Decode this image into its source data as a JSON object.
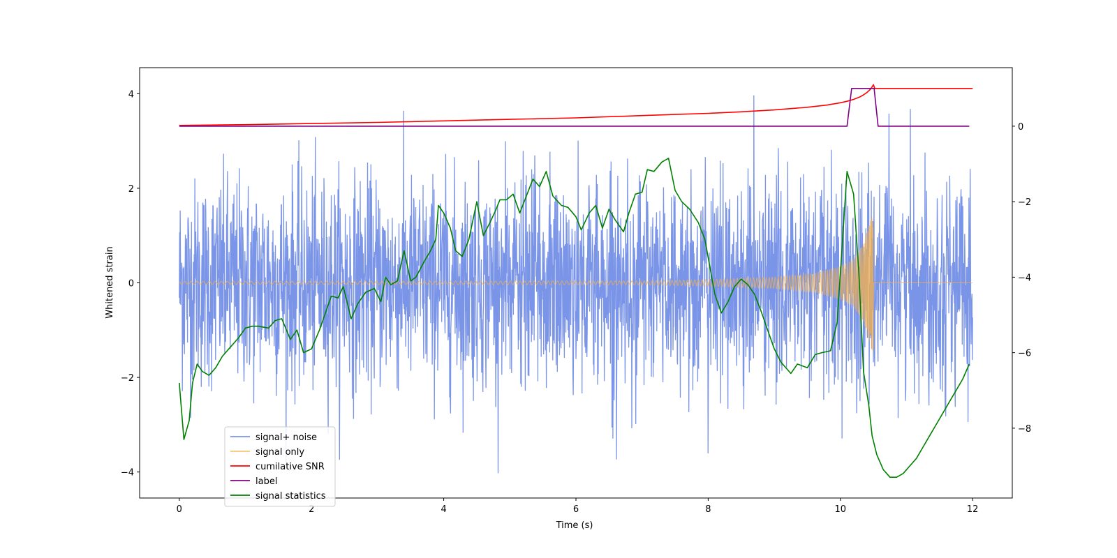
{
  "chart_data": {
    "type": "line",
    "title": "",
    "xlabel": "Time (s)",
    "ylabel": "Whitened strain",
    "xlim": [
      -0.6,
      12.6
    ],
    "ylim": [
      -4.55,
      4.55
    ],
    "y2lim": [
      -9.85,
      1.55
    ],
    "x_ticks": [
      0,
      2,
      4,
      6,
      8,
      10,
      12
    ],
    "y_ticks": [
      -4,
      -2,
      0,
      2,
      4
    ],
    "y2_ticks": [
      -8,
      -6,
      -4,
      -2,
      0
    ],
    "grid": false,
    "legend_position": "lower-left",
    "colors": {
      "noise": "#6b88e6",
      "signal": "#f5b24a",
      "snr": "#ff0000",
      "label": "#800080",
      "stats": "#008000"
    },
    "legend": [
      {
        "label": "signal+ noise",
        "key": "noise"
      },
      {
        "label": "signal only",
        "key": "signal"
      },
      {
        "label": "cumilative SNR",
        "key": "snr"
      },
      {
        "label": "label",
        "key": "label"
      },
      {
        "label": "signal statistics",
        "key": "stats"
      }
    ],
    "series": [
      {
        "name": "signal+ noise",
        "axis": "left",
        "description": "whitened strain, noise dominated, roughly Gaussian with sigma about 1.1 and peaks reaching about ±4.1",
        "x_range": [
          0,
          12
        ],
        "sigma": 1.1,
        "peak_max": 4.1,
        "peak_min": -4.15
      },
      {
        "name": "signal only",
        "axis": "left",
        "description": "chirp oscillating about 0, envelope grows toward merger near t=10.5 s then cuts off",
        "x_range": [
          0,
          12
        ],
        "merger_time": 10.5,
        "envelope_points": [
          [
            0,
            0.03
          ],
          [
            7,
            0.04
          ],
          [
            8,
            0.07
          ],
          [
            9,
            0.12
          ],
          [
            9.6,
            0.2
          ],
          [
            10,
            0.35
          ],
          [
            10.2,
            0.5
          ],
          [
            10.35,
            0.85
          ],
          [
            10.45,
            1.3
          ],
          [
            10.5,
            1.5
          ]
        ]
      },
      {
        "name": "cumilative SNR",
        "axis": "right",
        "x": [
          0,
          1,
          2,
          3,
          4,
          5,
          6,
          7,
          7.5,
          8,
          8.5,
          9,
          9.5,
          9.8,
          10,
          10.1,
          10.2,
          10.3,
          10.35,
          10.4,
          10.45,
          10.48,
          10.5,
          10.52,
          12
        ],
        "values": [
          0.02,
          0.04,
          0.07,
          0.1,
          0.14,
          0.18,
          0.22,
          0.28,
          0.31,
          0.34,
          0.38,
          0.43,
          0.5,
          0.56,
          0.62,
          0.66,
          0.71,
          0.78,
          0.83,
          0.89,
          0.97,
          1.04,
          1.1,
          1.0,
          1.0
        ]
      },
      {
        "name": "label",
        "axis": "right",
        "x": [
          0,
          10.1,
          10.17,
          10.51,
          10.57,
          11.95
        ],
        "values": [
          0,
          0,
          1,
          1,
          0,
          0
        ]
      },
      {
        "name": "signal statistics",
        "axis": "right",
        "x": [
          0,
          0.07,
          0.15,
          0.2,
          0.27,
          0.35,
          0.45,
          0.55,
          0.65,
          0.75,
          0.9,
          1.0,
          1.1,
          1.2,
          1.35,
          1.45,
          1.55,
          1.68,
          1.78,
          1.88,
          2.0,
          2.12,
          2.2,
          2.3,
          2.4,
          2.48,
          2.6,
          2.7,
          2.82,
          2.95,
          3.05,
          3.12,
          3.2,
          3.3,
          3.4,
          3.5,
          3.58,
          3.7,
          3.8,
          3.88,
          3.92,
          4.0,
          4.1,
          4.18,
          4.28,
          4.38,
          4.5,
          4.6,
          4.7,
          4.78,
          4.85,
          4.95,
          5.05,
          5.15,
          5.25,
          5.35,
          5.45,
          5.55,
          5.65,
          5.78,
          5.88,
          6.0,
          6.08,
          6.2,
          6.3,
          6.4,
          6.5,
          6.6,
          6.72,
          6.8,
          6.9,
          7.0,
          7.08,
          7.18,
          7.3,
          7.4,
          7.5,
          7.6,
          7.72,
          7.85,
          7.95,
          8.1,
          8.2,
          8.3,
          8.4,
          8.5,
          8.6,
          8.7,
          8.8,
          8.9,
          9.0,
          9.1,
          9.25,
          9.35,
          9.5,
          9.62,
          9.72,
          9.85,
          9.95,
          10.1,
          10.2,
          10.28,
          10.35,
          10.43,
          10.48,
          10.55,
          10.65,
          10.75,
          10.85,
          10.95,
          11.05,
          11.15,
          11.25,
          11.35,
          11.45,
          11.55,
          11.65,
          11.75,
          11.85,
          11.95
        ],
        "values": [
          -6.8,
          -8.3,
          -7.8,
          -6.8,
          -6.3,
          -6.5,
          -6.6,
          -6.4,
          -6.1,
          -5.9,
          -5.6,
          -5.35,
          -5.3,
          -5.3,
          -5.35,
          -5.15,
          -5.1,
          -5.65,
          -5.4,
          -6.0,
          -5.9,
          -5.4,
          -5.0,
          -4.5,
          -4.55,
          -4.25,
          -5.1,
          -4.7,
          -4.4,
          -4.3,
          -4.65,
          -4.0,
          -4.2,
          -4.1,
          -3.3,
          -4.1,
          -4.0,
          -3.6,
          -3.3,
          -3.0,
          -2.1,
          -2.3,
          -2.7,
          -3.3,
          -3.45,
          -3.0,
          -2.0,
          -2.9,
          -2.55,
          -2.25,
          -1.95,
          -1.95,
          -1.8,
          -2.3,
          -1.85,
          -1.4,
          -1.6,
          -1.2,
          -1.85,
          -2.1,
          -2.15,
          -2.4,
          -2.75,
          -2.3,
          -2.1,
          -2.7,
          -2.2,
          -2.5,
          -2.8,
          -2.3,
          -1.8,
          -1.75,
          -1.15,
          -1.2,
          -0.95,
          -0.85,
          -1.7,
          -2.0,
          -2.2,
          -2.55,
          -3.0,
          -4.45,
          -4.95,
          -4.65,
          -4.25,
          -4.05,
          -4.2,
          -4.45,
          -4.9,
          -5.4,
          -5.9,
          -6.25,
          -6.55,
          -6.3,
          -6.4,
          -6.05,
          -6.0,
          -5.95,
          -5.2,
          -1.2,
          -1.8,
          -3.9,
          -6.5,
          -7.4,
          -8.2,
          -8.7,
          -9.1,
          -9.3,
          -9.3,
          -9.2,
          -9.0,
          -8.8,
          -8.5,
          -8.2,
          -7.9,
          -7.6,
          -7.3,
          -7.0,
          -6.7,
          -6.3
        ]
      }
    ]
  }
}
